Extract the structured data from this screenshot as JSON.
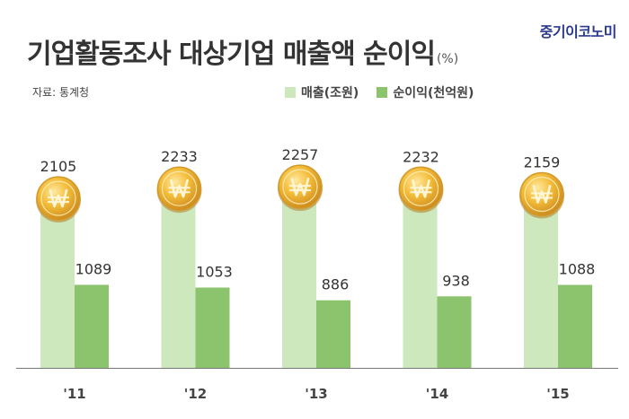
{
  "brand": "중기이코노미",
  "title": "기업활동조사 대상기업 매출액 순이익",
  "title_unit": "(%)",
  "source": "자료: 통계청",
  "chart_data": {
    "type": "bar",
    "categories": [
      "'11",
      "'12",
      "'13",
      "'14",
      "'15"
    ],
    "series": [
      {
        "name": "매출(조원)",
        "values": [
          2105,
          2233,
          2257,
          2232,
          2159
        ],
        "color": "#cde8bd"
      },
      {
        "name": "순이익(천억원)",
        "values": [
          1089,
          1053,
          886,
          938,
          1088
        ],
        "color": "#8cc46e"
      }
    ],
    "legend": "top-right",
    "grid": false,
    "coin_icon": "won-coin-icon"
  }
}
